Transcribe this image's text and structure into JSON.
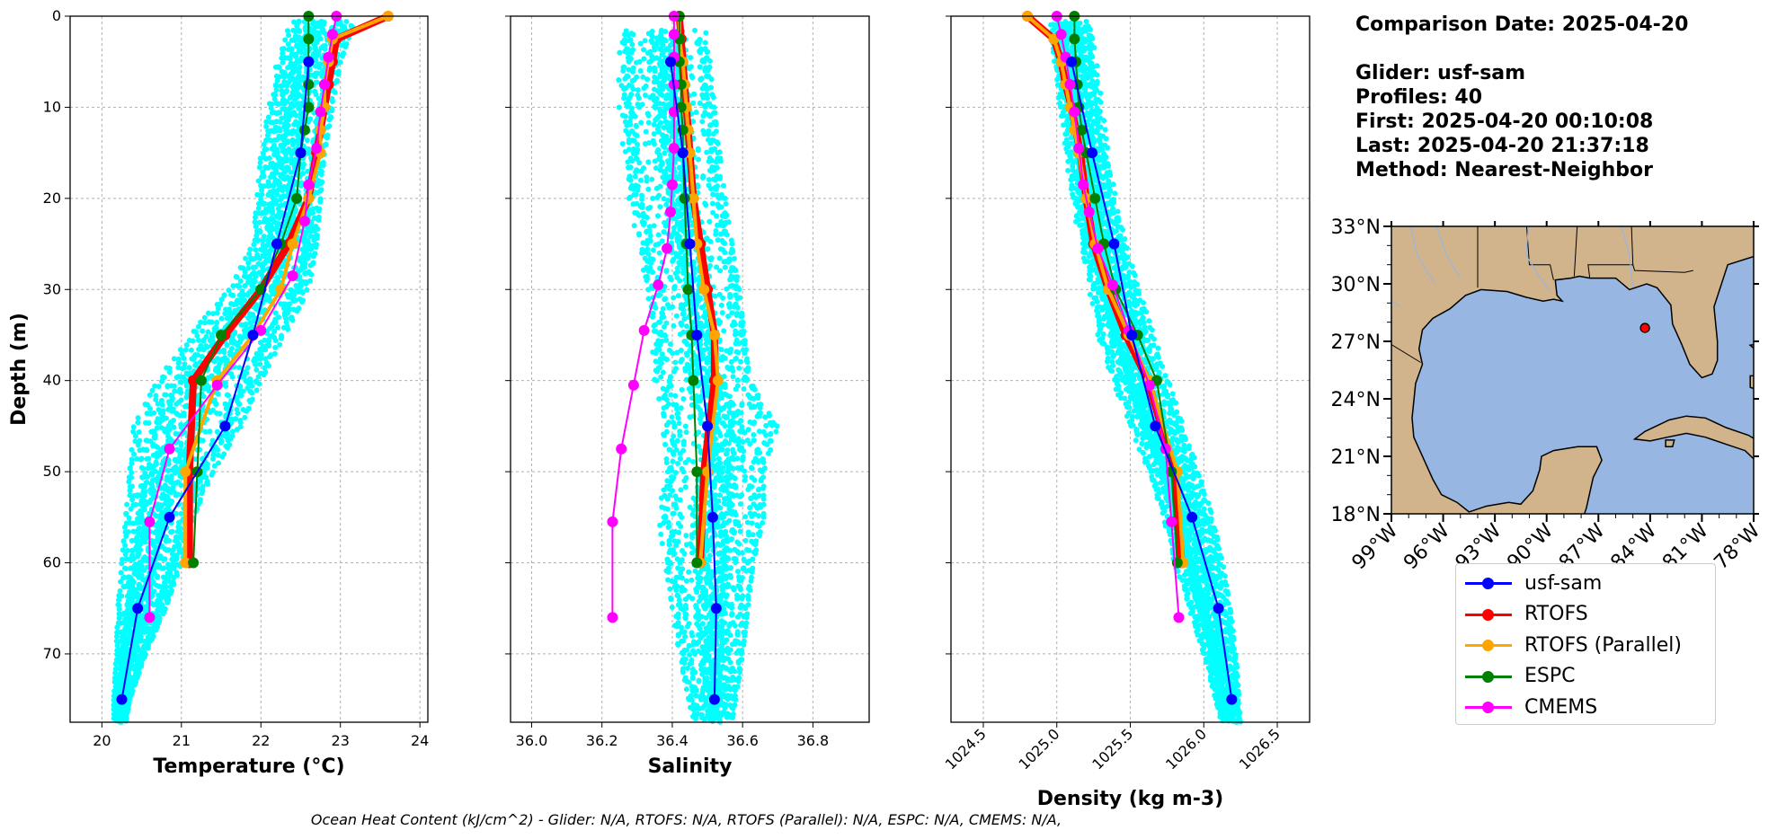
{
  "info": {
    "comparison_date": "Comparison Date: 2025-04-20",
    "glider": "Glider: usf-sam",
    "profiles": "Profiles: 40",
    "first": "First: 2025-04-20 00:10:08",
    "last": "Last: 2025-04-20 21:37:18",
    "method": "Method: Nearest-Neighbor"
  },
  "footer": "Ocean Heat Content (kJ/cm^2) - Glider: N/A,  RTOFS: N/A,  RTOFS (Parallel): N/A,  ESPC: N/A,  CMEMS: N/A,",
  "colors": {
    "glider_cloud": "#00FFFF",
    "usf-sam": "#0000FF",
    "RTOFS": "#FF0000",
    "RTOFS (Parallel)": "#FFA500",
    "ESPC": "#008000",
    "CMEMS": "#FF00FF",
    "land": "#D2B48C",
    "ocean": "#97B6E1"
  },
  "legend": [
    {
      "name": "usf-sam",
      "color": "#0000FF"
    },
    {
      "name": "RTOFS",
      "color": "#FF0000"
    },
    {
      "name": "RTOFS (Parallel)",
      "color": "#FFA500"
    },
    {
      "name": "ESPC",
      "color": "#008000"
    },
    {
      "name": "CMEMS",
      "color": "#FF00FF"
    }
  ],
  "map": {
    "lon_ticks": [
      "99°W",
      "96°W",
      "93°W",
      "90°W",
      "87°W",
      "84°W",
      "81°W",
      "78°W"
    ],
    "lat_ticks": [
      "33°N",
      "30°N",
      "27°N",
      "24°N",
      "21°N",
      "18°N"
    ],
    "lon_range": [
      -99,
      -78
    ],
    "lat_range": [
      18,
      33
    ],
    "glider_position": {
      "lon": -84.3,
      "lat": 27.7
    }
  },
  "chart_data": [
    {
      "type": "line",
      "xlabel": "Temperature (°C)",
      "ylabel": "Depth (m)",
      "xlim": [
        19.6,
        24.1
      ],
      "ylim": [
        77.5,
        0
      ],
      "xticks": [
        "20",
        "21",
        "22",
        "23",
        "24"
      ],
      "yticks": [
        "0",
        "10",
        "20",
        "30",
        "40",
        "50",
        "60",
        "70"
      ],
      "grid": true,
      "scatter": {
        "name": "glider profiles",
        "color": "#00FFFF",
        "envelope": [
          [
            0,
            22.4,
            23.2
          ],
          [
            5,
            22.2,
            23.0
          ],
          [
            10,
            22.1,
            22.9
          ],
          [
            15,
            22.0,
            22.8
          ],
          [
            20,
            21.95,
            22.75
          ],
          [
            25,
            21.9,
            22.7
          ],
          [
            30,
            21.6,
            22.6
          ],
          [
            35,
            21.1,
            22.3
          ],
          [
            40,
            20.7,
            22.0
          ],
          [
            45,
            20.4,
            21.75
          ],
          [
            50,
            20.35,
            21.4
          ],
          [
            55,
            20.3,
            21.15
          ],
          [
            60,
            20.25,
            21.0
          ],
          [
            65,
            20.2,
            20.8
          ],
          [
            70,
            20.18,
            20.55
          ],
          [
            75,
            20.15,
            20.35
          ],
          [
            77.5,
            20.15,
            20.3
          ]
        ]
      },
      "series": [
        {
          "name": "usf-sam",
          "x": [
            22.6,
            22.5,
            22.2,
            21.9,
            21.55,
            20.85,
            20.45,
            20.25
          ],
          "y": [
            5,
            15,
            25,
            35,
            45,
            55,
            65,
            75
          ]
        },
        {
          "name": "RTOFS",
          "x": [
            23.6,
            22.95,
            22.9,
            22.85,
            22.8,
            22.75,
            22.7,
            22.6,
            22.35,
            22.0,
            21.55,
            21.15,
            21.1,
            21.1
          ],
          "y": [
            0,
            2.5,
            5,
            7.5,
            10,
            12.5,
            15,
            20,
            25,
            30,
            35,
            40,
            50,
            60
          ]
        },
        {
          "name": "RTOFS (Parallel)",
          "x": [
            23.6,
            22.9,
            22.85,
            22.8,
            22.8,
            22.75,
            22.75,
            22.6,
            22.4,
            22.25,
            21.9,
            21.45,
            21.05,
            21.05
          ],
          "y": [
            0,
            2.5,
            5,
            7.5,
            10,
            12.5,
            15,
            20,
            25,
            30,
            35,
            40,
            50,
            60
          ]
        },
        {
          "name": "ESPC",
          "x": [
            22.6,
            22.6,
            22.6,
            22.6,
            22.6,
            22.55,
            22.5,
            22.45,
            22.25,
            22.0,
            21.5,
            21.25,
            21.2,
            21.15
          ],
          "y": [
            0,
            2.5,
            5,
            7.5,
            10,
            12.5,
            15,
            20,
            25,
            30,
            35,
            40,
            50,
            60
          ]
        },
        {
          "name": "CMEMS",
          "x": [
            22.95,
            22.9,
            22.85,
            22.8,
            22.75,
            22.7,
            22.6,
            22.55,
            22.4,
            22.0,
            21.45,
            20.85,
            20.6,
            20.6
          ],
          "y": [
            0,
            2,
            4.5,
            7.5,
            10.5,
            14.5,
            18.5,
            22.5,
            28.5,
            34.5,
            40.5,
            47.5,
            55.5,
            66
          ]
        }
      ]
    },
    {
      "type": "line",
      "xlabel": "Salinity",
      "ylabel": "",
      "xlim": [
        35.94,
        36.96
      ],
      "ylim": [
        77.5,
        0
      ],
      "xticks": [
        "36.0",
        "36.2",
        "36.4",
        "36.6",
        "36.8"
      ],
      "yticks": [
        "0",
        "10",
        "20",
        "30",
        "40",
        "50",
        "60",
        "70"
      ],
      "grid": true,
      "scatter": {
        "name": "glider profiles",
        "color": "#00FFFF",
        "envelope": [
          [
            0,
            36.33,
            36.48
          ],
          [
            2,
            36.24,
            36.5
          ],
          [
            10,
            36.24,
            36.52
          ],
          [
            20,
            36.27,
            36.55
          ],
          [
            30,
            36.32,
            36.59
          ],
          [
            40,
            36.35,
            36.62
          ],
          [
            45,
            36.37,
            36.7
          ],
          [
            50,
            36.38,
            36.66
          ],
          [
            55,
            36.36,
            36.66
          ],
          [
            60,
            36.38,
            36.63
          ],
          [
            70,
            36.42,
            36.6
          ],
          [
            77.5,
            36.46,
            36.57
          ]
        ]
      },
      "series": [
        {
          "name": "usf-sam",
          "x": [
            36.395,
            36.43,
            36.45,
            36.47,
            36.5,
            36.515,
            36.525,
            36.52
          ],
          "y": [
            5,
            15,
            25,
            35,
            45,
            55,
            65,
            75
          ]
        },
        {
          "name": "RTOFS",
          "x": [
            36.42,
            36.425,
            36.43,
            36.435,
            36.44,
            36.445,
            36.45,
            36.46,
            36.48,
            36.5,
            36.52,
            36.52,
            36.49,
            36.48
          ],
          "y": [
            0,
            2.5,
            5,
            7.5,
            10,
            12.5,
            15,
            20,
            25,
            30,
            35,
            40,
            50,
            60
          ]
        },
        {
          "name": "RTOFS (Parallel)",
          "x": [
            36.42,
            36.42,
            36.43,
            36.435,
            36.44,
            36.445,
            36.45,
            36.46,
            36.47,
            36.49,
            36.52,
            36.53,
            36.5,
            36.48
          ],
          "y": [
            0,
            2.5,
            5,
            7.5,
            10,
            12.5,
            15,
            20,
            25,
            30,
            35,
            40,
            50,
            60
          ]
        },
        {
          "name": "ESPC",
          "x": [
            36.42,
            36.42,
            36.42,
            36.425,
            36.425,
            36.43,
            36.43,
            36.435,
            36.44,
            36.445,
            36.455,
            36.46,
            36.47,
            36.47
          ],
          "y": [
            0,
            2.5,
            5,
            7.5,
            10,
            12.5,
            15,
            20,
            25,
            30,
            35,
            40,
            50,
            60
          ]
        },
        {
          "name": "CMEMS",
          "x": [
            36.405,
            36.405,
            36.405,
            36.405,
            36.405,
            36.405,
            36.4,
            36.395,
            36.385,
            36.36,
            36.32,
            36.29,
            36.255,
            36.23,
            36.23
          ],
          "y": [
            0,
            2,
            4.5,
            7.5,
            10.5,
            14.5,
            18.5,
            21.5,
            25.5,
            29.5,
            34.5,
            40.5,
            47.5,
            55.5,
            66
          ]
        }
      ]
    },
    {
      "type": "line",
      "xlabel": "Density (kg m-3)",
      "ylabel": "",
      "xlim": [
        1024.28,
        1026.72
      ],
      "ylim": [
        77.5,
        0
      ],
      "xticks": [
        "1024.5",
        "1025.0",
        "1025.5",
        "1026.0",
        "1026.5"
      ],
      "yticks": [
        "0",
        "10",
        "20",
        "30",
        "40",
        "50",
        "60",
        "70"
      ],
      "grid": true,
      "scatter": {
        "name": "glider profiles",
        "color": "#00FFFF",
        "envelope": [
          [
            0,
            1024.95,
            1025.22
          ],
          [
            5,
            1024.98,
            1025.27
          ],
          [
            10,
            1025.02,
            1025.31
          ],
          [
            15,
            1025.06,
            1025.35
          ],
          [
            20,
            1025.1,
            1025.4
          ],
          [
            25,
            1025.16,
            1025.47
          ],
          [
            30,
            1025.22,
            1025.56
          ],
          [
            35,
            1025.28,
            1025.66
          ],
          [
            40,
            1025.38,
            1025.76
          ],
          [
            45,
            1025.5,
            1025.86
          ],
          [
            50,
            1025.62,
            1025.97
          ],
          [
            55,
            1025.72,
            1026.06
          ],
          [
            60,
            1025.8,
            1026.13
          ],
          [
            65,
            1025.9,
            1026.18
          ],
          [
            70,
            1026.0,
            1026.22
          ],
          [
            75,
            1026.08,
            1026.24
          ],
          [
            77.5,
            1026.12,
            1026.25
          ]
        ]
      },
      "series": [
        {
          "name": "usf-sam",
          "x": [
            1025.1,
            1025.24,
            1025.39,
            1025.51,
            1025.67,
            1025.92,
            1026.1,
            1026.19
          ],
          "y": [
            5,
            15,
            25,
            35,
            45,
            55,
            65,
            75
          ]
        },
        {
          "name": "RTOFS",
          "x": [
            1024.8,
            1024.98,
            1025.03,
            1025.06,
            1025.1,
            1025.13,
            1025.16,
            1025.2,
            1025.25,
            1025.35,
            1025.47,
            1025.62,
            1025.8,
            1025.85
          ],
          "y": [
            0,
            2.5,
            5,
            7.5,
            10,
            12.5,
            15,
            20,
            25,
            30,
            35,
            40,
            50,
            60
          ]
        },
        {
          "name": "RTOFS (Parallel)",
          "x": [
            1024.8,
            1024.98,
            1025.03,
            1025.06,
            1025.09,
            1025.12,
            1025.15,
            1025.2,
            1025.26,
            1025.35,
            1025.49,
            1025.63,
            1025.82,
            1025.86
          ],
          "y": [
            0,
            2.5,
            5,
            7.5,
            10,
            12.5,
            15,
            20,
            25,
            30,
            35,
            40,
            50,
            60
          ]
        },
        {
          "name": "ESPC",
          "x": [
            1025.12,
            1025.12,
            1025.13,
            1025.14,
            1025.15,
            1025.17,
            1025.2,
            1025.26,
            1025.32,
            1025.4,
            1025.55,
            1025.68,
            1025.78,
            1025.82
          ],
          "y": [
            0,
            2.5,
            5,
            7.5,
            10,
            12.5,
            15,
            20,
            25,
            30,
            35,
            40,
            50,
            60
          ]
        },
        {
          "name": "CMEMS",
          "x": [
            1025.0,
            1025.03,
            1025.06,
            1025.09,
            1025.12,
            1025.15,
            1025.18,
            1025.22,
            1025.28,
            1025.38,
            1025.49,
            1025.63,
            1025.74,
            1025.78,
            1025.83
          ],
          "y": [
            0,
            2,
            4.5,
            7.5,
            10.5,
            14.5,
            18.5,
            21.5,
            25.5,
            29.5,
            34.5,
            40.5,
            47.5,
            55.5,
            66
          ]
        }
      ]
    }
  ]
}
